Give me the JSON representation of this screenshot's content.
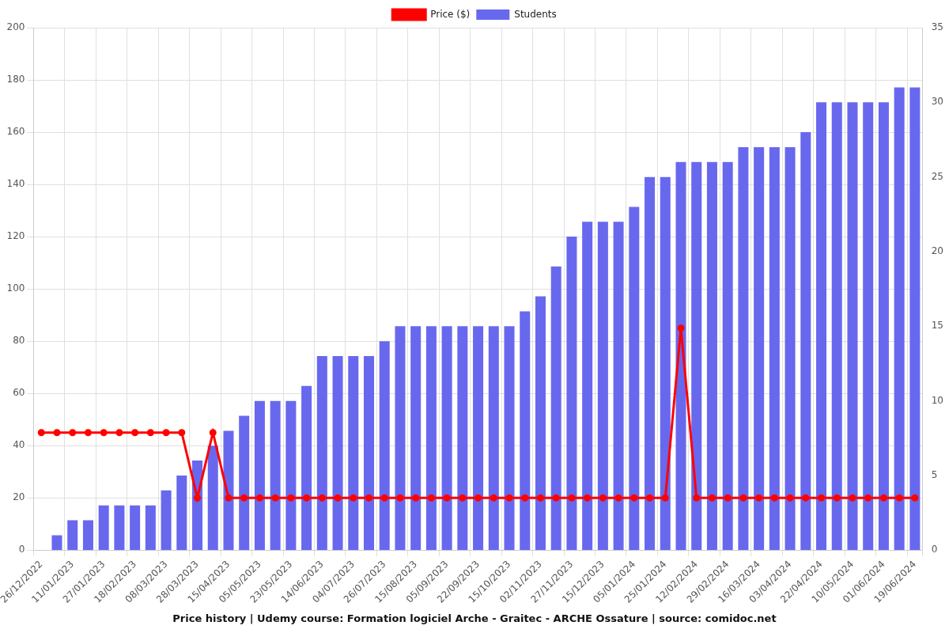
{
  "chart_data": {
    "type": "bar",
    "title": "Price history | Udemy course: Formation logiciel Arche - Graitec - ARCHE Ossature | source: comidoc.net",
    "categories": [
      "26/12/2022",
      null,
      "11/01/2023",
      null,
      "27/01/2023",
      null,
      "18/02/2023",
      null,
      "08/03/2023",
      null,
      "28/03/2023",
      null,
      "15/04/2023",
      null,
      "05/05/2023",
      null,
      "23/05/2023",
      null,
      "14/06/2023",
      null,
      "04/07/2023",
      null,
      "26/07/2023",
      null,
      "15/08/2023",
      null,
      "05/09/2023",
      null,
      "22/09/2023",
      null,
      "15/10/2023",
      null,
      "02/11/2023",
      null,
      "27/11/2023",
      null,
      "15/12/2023",
      null,
      "05/01/2024",
      null,
      "25/01/2024",
      null,
      "12/02/2024",
      null,
      "29/02/2024",
      null,
      "16/03/2024",
      null,
      "03/04/2024",
      null,
      "22/04/2024",
      null,
      "10/05/2024",
      null,
      "01/06/2024",
      null,
      "19/06/2024"
    ],
    "series": [
      {
        "name": "Price ($)",
        "type": "line",
        "color": "#ff0000",
        "marker": "circle",
        "values": [
          45,
          45,
          45,
          45,
          45,
          45,
          45,
          45,
          45,
          45,
          20,
          45,
          20,
          20,
          20,
          20,
          20,
          20,
          20,
          20,
          20,
          20,
          20,
          20,
          20,
          20,
          20,
          20,
          20,
          20,
          20,
          20,
          20,
          20,
          20,
          20,
          20,
          20,
          20,
          20,
          20,
          85,
          20,
          20,
          20,
          20,
          20,
          20,
          20,
          20,
          20,
          20,
          20,
          20,
          20,
          20,
          20
        ]
      },
      {
        "name": "Students",
        "type": "bar",
        "color": "#6868ee",
        "axis": "y2",
        "values": [
          0,
          1,
          2,
          2,
          3,
          3,
          3,
          3,
          4,
          5,
          6,
          7,
          8,
          9,
          10,
          10,
          10,
          11,
          13,
          13,
          13,
          13,
          14,
          15,
          15,
          15,
          15,
          15,
          15,
          15,
          15,
          16,
          17,
          19,
          21,
          22,
          22,
          22,
          23,
          25,
          25,
          26,
          26,
          26,
          26,
          27,
          27,
          27,
          27,
          28,
          30,
          30,
          30,
          30,
          30,
          31,
          31
        ]
      }
    ],
    "ylim": [
      0,
      200
    ],
    "yticks": [
      0,
      20,
      40,
      60,
      80,
      100,
      120,
      140,
      160,
      180,
      200
    ],
    "y2lim": [
      0,
      35
    ],
    "y2ticks": [
      0,
      5,
      10,
      15,
      20,
      25,
      30,
      35
    ],
    "grid": true,
    "legend": "top"
  }
}
